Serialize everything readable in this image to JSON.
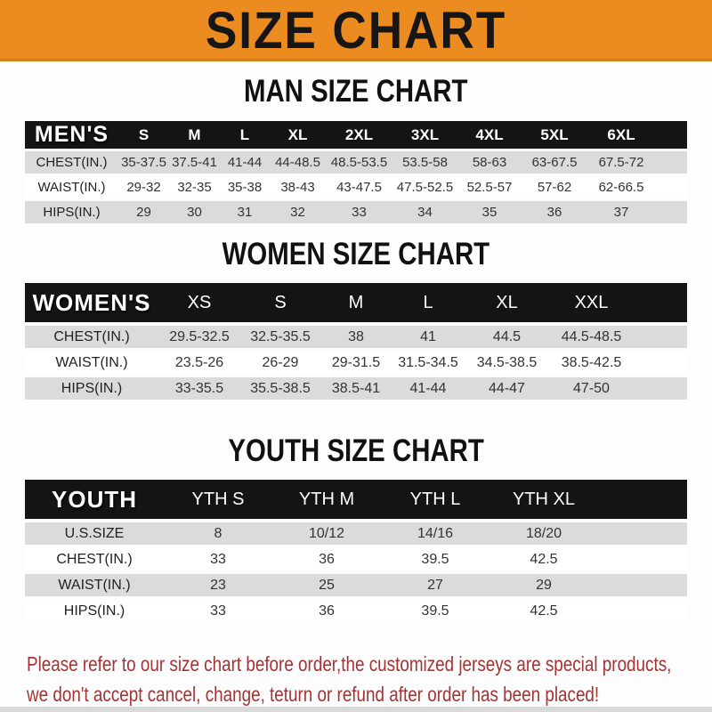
{
  "banner": {
    "title": "SIZE CHART",
    "bg_color": "#EC8B20",
    "text_color": "#161616"
  },
  "sections": [
    {
      "id": "men",
      "heading": "MAN SIZE CHART",
      "table": {
        "corner_label": "MEN'S",
        "columns": [
          "S",
          "M",
          "L",
          "XL",
          "2XL",
          "3XL",
          "4XL",
          "5XL",
          "6XL"
        ],
        "rows": [
          {
            "label": "CHEST(IN.)",
            "values": [
              "35-37.5",
              "37.5-41",
              "41-44",
              "44-48.5",
              "48.5-53.5",
              "53.5-58",
              "58-63",
              "63-67.5",
              "67.5-72"
            ]
          },
          {
            "label": "WAIST(IN.)",
            "values": [
              "29-32",
              "32-35",
              "35-38",
              "38-43",
              "43-47.5",
              "47.5-52.5",
              "52.5-57",
              "57-62",
              "62-66.5"
            ]
          },
          {
            "label": "HIPS(IN.)",
            "values": [
              "29",
              "30",
              "31",
              "32",
              "33",
              "34",
              "35",
              "36",
              "37"
            ]
          }
        ]
      }
    },
    {
      "id": "women",
      "heading": "WOMEN SIZE CHART",
      "table": {
        "corner_label": "WOMEN'S",
        "columns": [
          "XS",
          "S",
          "M",
          "L",
          "XL",
          "XXL"
        ],
        "rows": [
          {
            "label": "CHEST(IN.)",
            "values": [
              "29.5-32.5",
              "32.5-35.5",
              "38",
              "41",
              "44.5",
              "44.5-48.5"
            ]
          },
          {
            "label": "WAIST(IN.)",
            "values": [
              "23.5-26",
              "26-29",
              "29-31.5",
              "31.5-34.5",
              "34.5-38.5",
              "38.5-42.5"
            ]
          },
          {
            "label": "HIPS(IN.)",
            "values": [
              "33-35.5",
              "35.5-38.5",
              "38.5-41",
              "41-44",
              "44-47",
              "47-50"
            ]
          }
        ]
      }
    },
    {
      "id": "youth",
      "heading": "YOUTH SIZE CHART",
      "table": {
        "corner_label": "YOUTH",
        "columns": [
          "YTH S",
          "YTH M",
          "YTH L",
          "YTH XL"
        ],
        "rows": [
          {
            "label": "U.S.SIZE",
            "values": [
              "8",
              "10/12",
              "14/16",
              "18/20"
            ]
          },
          {
            "label": "CHEST(IN.)",
            "values": [
              "33",
              "36",
              "39.5",
              "42.5"
            ]
          },
          {
            "label": "WAIST(IN.)",
            "values": [
              "23",
              "25",
              "27",
              "29"
            ]
          },
          {
            "label": "HIPS(IN.)",
            "values": [
              "33",
              "36",
              "39.5",
              "42.5"
            ]
          }
        ]
      }
    }
  ],
  "disclaimer": {
    "lines": [
      "Please refer to our size chart before order,the customized jerseys are special products,",
      "we don't accept cancel, change, teturn or refund after order has been placed!"
    ],
    "color": "#A23434"
  },
  "colors": {
    "banner_orange": "#EC8B20",
    "header_bar_black": "#141414",
    "row_gray": "#DBDBDB",
    "row_white": "#FFFFFF"
  }
}
